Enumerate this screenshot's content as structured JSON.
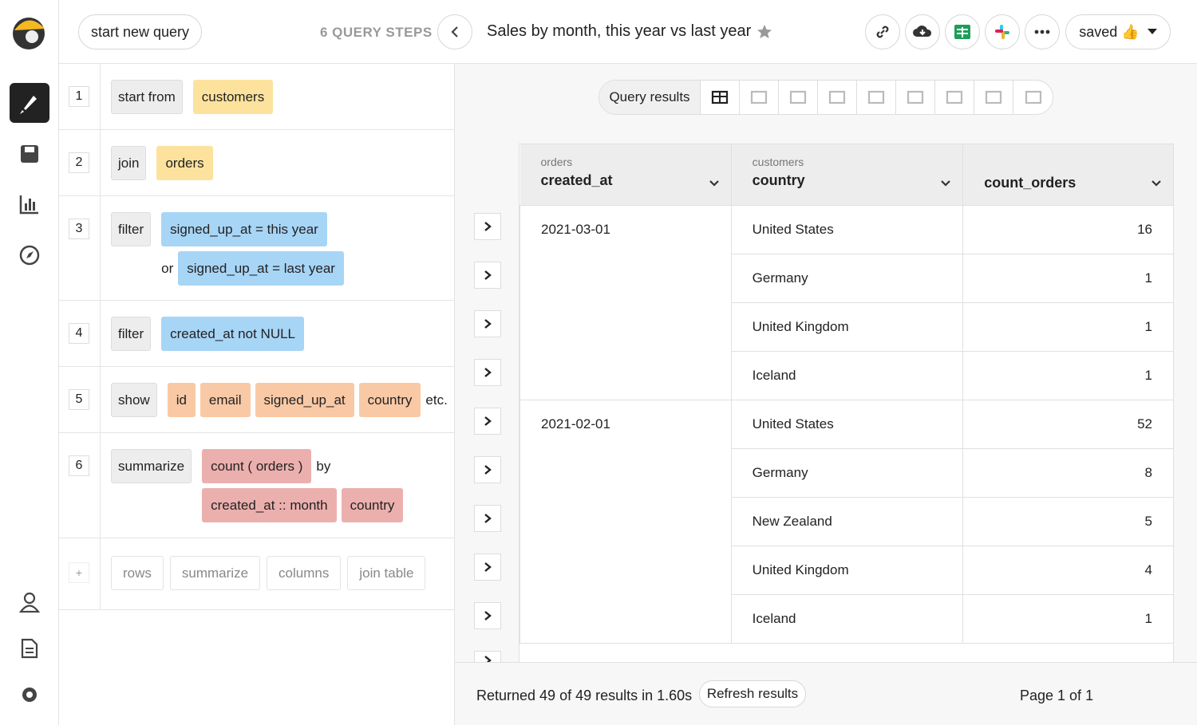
{
  "header": {
    "new_query": "start new query",
    "steps_count": "6 QUERY STEPS",
    "title": "Sales by month, this year vs last year",
    "saved": "saved 👍"
  },
  "steps": [
    {
      "number": 1,
      "keyword": "start from",
      "lines": [
        {
          "tokens": [
            "customers"
          ]
        }
      ]
    },
    {
      "number": 2,
      "keyword": "join",
      "lines": [
        {
          "tokens": [
            "orders"
          ]
        }
      ]
    },
    {
      "number": 3,
      "keyword": "filter",
      "lines": [
        {
          "tokens": [
            "signed_up_at = this year"
          ]
        },
        {
          "prefix": "or",
          "tokens": [
            "signed_up_at = last year"
          ]
        }
      ]
    },
    {
      "number": 4,
      "keyword": "filter",
      "lines": [
        {
          "tokens": [
            "created_at not NULL"
          ]
        }
      ]
    },
    {
      "number": 5,
      "keyword": "show",
      "lines": [
        {
          "tokens": [
            "id",
            "email",
            "signed_up_at",
            "country"
          ],
          "suffix": "etc."
        }
      ]
    },
    {
      "number": 6,
      "keyword": "summarize",
      "lines": [
        {
          "tokens": [
            "count ( orders )"
          ],
          "suffix": "by"
        },
        {
          "tokens": [
            "created_at :: month",
            "country"
          ]
        }
      ]
    }
  ],
  "add_step": {
    "plus": "+",
    "buttons": [
      "rows",
      "summarize",
      "columns",
      "join table"
    ]
  },
  "view_toolbar": {
    "label": "Query results"
  },
  "table": {
    "columns": [
      {
        "source": "orders",
        "name": "created_at"
      },
      {
        "source": "customers",
        "name": "country"
      },
      {
        "name": "count_orders"
      }
    ],
    "groups": [
      {
        "date": "2021-03-01",
        "rows": [
          [
            "United States",
            16
          ],
          [
            "Germany",
            1
          ],
          [
            "United Kingdom",
            1
          ],
          [
            "Iceland",
            1
          ]
        ]
      },
      {
        "date": "2021-02-01",
        "rows": [
          [
            "United States",
            52
          ],
          [
            "Germany",
            8
          ],
          [
            "New Zealand",
            5
          ],
          [
            "United Kingdom",
            4
          ],
          [
            "Iceland",
            1
          ]
        ]
      }
    ]
  },
  "footer": {
    "status": "Returned 49 of 49 results in 1.60s",
    "refresh": "Refresh results",
    "page": "Page 1 of 1"
  }
}
